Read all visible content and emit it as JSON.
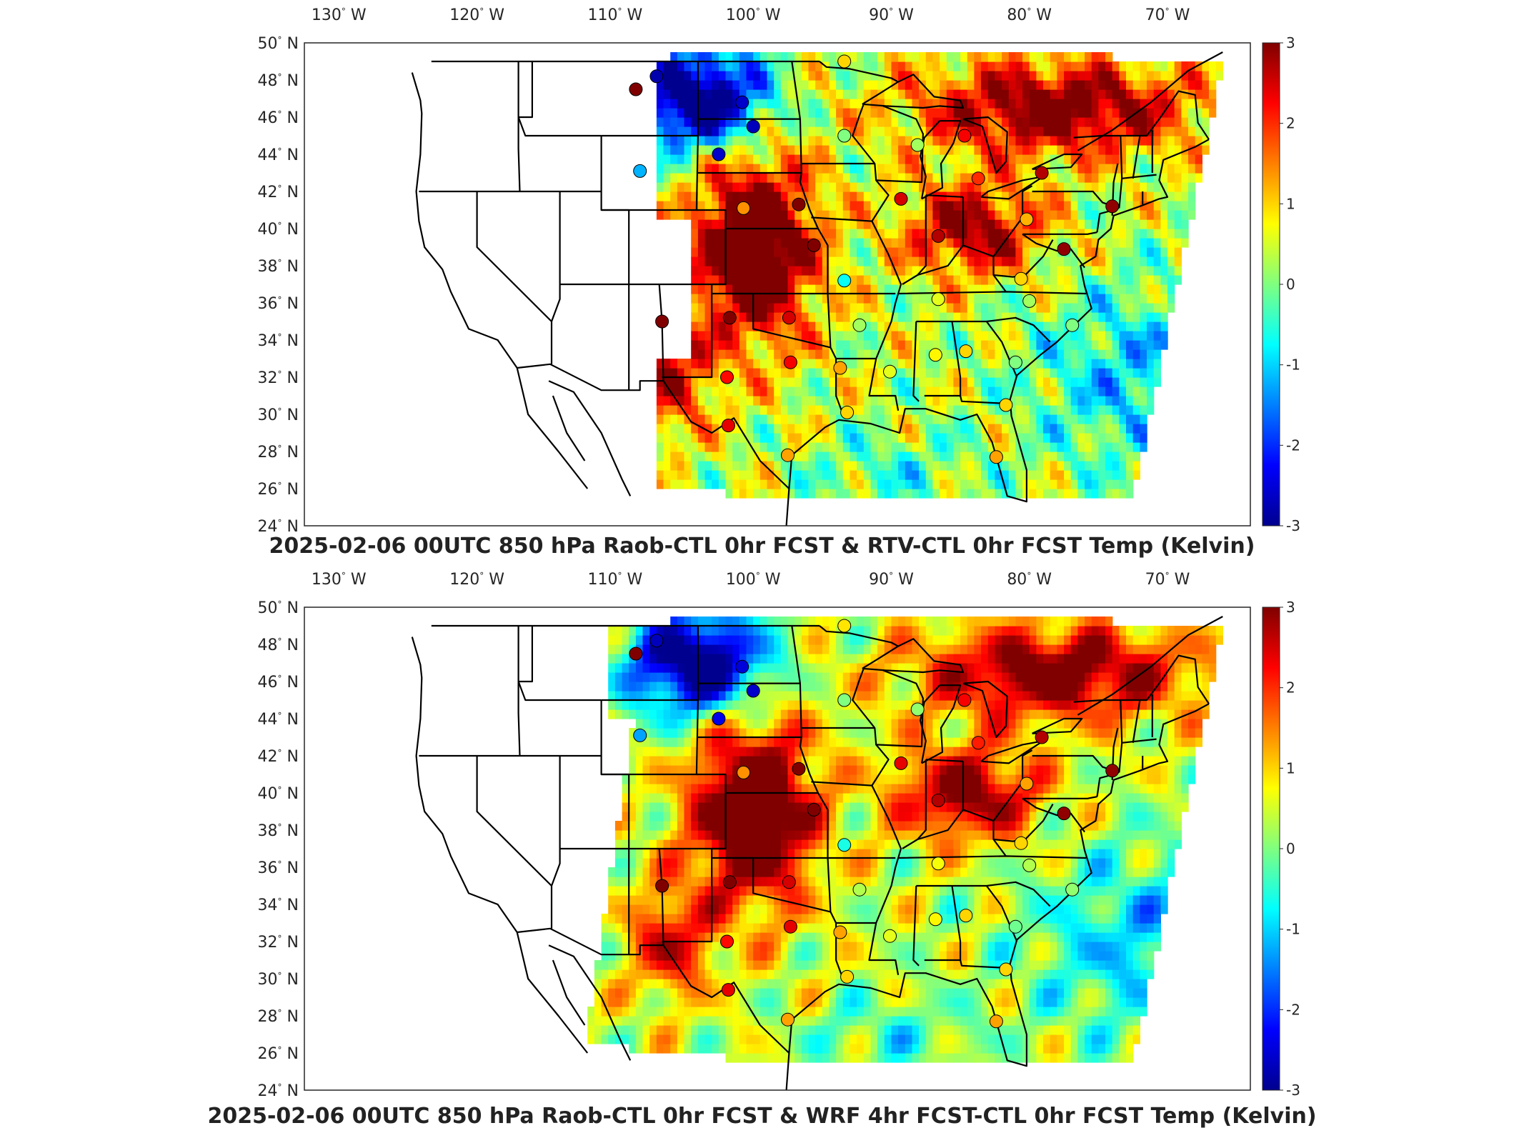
{
  "panels": [
    {
      "id": "top",
      "title": "2025-02-06 00UTC 850 hPa Raob-CTL 0hr FCST & RTV-CTL 0hr FCST Temp (Kelvin)",
      "field": "rtv"
    },
    {
      "id": "bottom",
      "title": "2025-02-06 00UTC 850 hPa Raob-CTL 0hr FCST & WRF 4hr FCST-CTL 0hr FCST Temp (Kelvin)",
      "field": "wrf"
    }
  ],
  "axes": {
    "lon_ticks": [
      "130",
      "120",
      "110",
      "100",
      "90",
      "80",
      "70"
    ],
    "lon_suffix": "W",
    "lat_ticks": [
      "50",
      "48",
      "46",
      "44",
      "42",
      "40",
      "38",
      "36",
      "34",
      "32",
      "30",
      "28",
      "26",
      "24"
    ],
    "lat_suffix": "N"
  },
  "colorbar": {
    "ticks": [
      "3",
      "2",
      "1",
      "0",
      "-1",
      "-2",
      "-3"
    ],
    "range": [
      -3,
      3
    ],
    "colormap": "jet",
    "colors": [
      "#00008f",
      "#0000ff",
      "#00ffff",
      "#ffff00",
      "#ff0000",
      "#800000"
    ]
  },
  "stations": [
    {
      "lon": -108.5,
      "lat": 47.5,
      "top": 3.0,
      "bottom": 3.0
    },
    {
      "lon": -107.0,
      "lat": 48.2,
      "top": -2.8,
      "bottom": -2.7
    },
    {
      "lon": -100.8,
      "lat": 46.8,
      "top": -2.6,
      "bottom": -2.5
    },
    {
      "lon": -100.0,
      "lat": 45.5,
      "top": -2.7,
      "bottom": -2.6
    },
    {
      "lon": -102.5,
      "lat": 44.0,
      "top": -2.6,
      "bottom": -2.4
    },
    {
      "lon": -108.2,
      "lat": 43.1,
      "top": -1.2,
      "bottom": -1.3
    },
    {
      "lon": -93.4,
      "lat": 49.0,
      "top": 1.0,
      "bottom": 0.9
    },
    {
      "lon": -93.4,
      "lat": 45.0,
      "top": 0.0,
      "bottom": 0.0
    },
    {
      "lon": -88.1,
      "lat": 44.5,
      "top": 0.2,
      "bottom": 0.1
    },
    {
      "lon": -84.7,
      "lat": 45.0,
      "top": 2.3,
      "bottom": 2.3
    },
    {
      "lon": -83.7,
      "lat": 42.7,
      "top": 2.0,
      "bottom": 2.1
    },
    {
      "lon": -79.1,
      "lat": 43.0,
      "top": 2.7,
      "bottom": 2.7
    },
    {
      "lon": -89.3,
      "lat": 41.6,
      "top": 2.5,
      "bottom": 2.4
    },
    {
      "lon": -96.7,
      "lat": 41.3,
      "top": 3.0,
      "bottom": 3.0
    },
    {
      "lon": -100.7,
      "lat": 41.1,
      "top": 1.4,
      "bottom": 1.4
    },
    {
      "lon": -95.6,
      "lat": 39.1,
      "top": 3.0,
      "bottom": 3.0
    },
    {
      "lon": -86.6,
      "lat": 39.6,
      "top": 2.7,
      "bottom": 2.7
    },
    {
      "lon": -80.2,
      "lat": 40.5,
      "top": 1.2,
      "bottom": 1.3
    },
    {
      "lon": -77.5,
      "lat": 38.9,
      "top": 2.9,
      "bottom": 2.9
    },
    {
      "lon": -74.0,
      "lat": 41.2,
      "top": 2.9,
      "bottom": 2.9
    },
    {
      "lon": -93.4,
      "lat": 37.2,
      "top": -0.7,
      "bottom": -0.6
    },
    {
      "lon": -86.6,
      "lat": 36.2,
      "top": 0.6,
      "bottom": 0.7
    },
    {
      "lon": -80.6,
      "lat": 37.3,
      "top": 1.0,
      "bottom": 1.0
    },
    {
      "lon": -80.0,
      "lat": 36.1,
      "top": 0.2,
      "bottom": 0.3
    },
    {
      "lon": -76.9,
      "lat": 34.8,
      "top": 0.0,
      "bottom": 0.1
    },
    {
      "lon": -101.7,
      "lat": 35.2,
      "top": 3.0,
      "bottom": 3.0
    },
    {
      "lon": -97.4,
      "lat": 35.2,
      "top": 2.5,
      "bottom": 2.5
    },
    {
      "lon": -106.6,
      "lat": 35.0,
      "top": 3.0,
      "bottom": 3.0
    },
    {
      "lon": -92.3,
      "lat": 34.8,
      "top": 0.2,
      "bottom": 0.3
    },
    {
      "lon": -97.3,
      "lat": 32.8,
      "top": 2.3,
      "bottom": 2.4
    },
    {
      "lon": -101.9,
      "lat": 32.0,
      "top": 2.2,
      "bottom": 2.2
    },
    {
      "lon": -93.7,
      "lat": 32.5,
      "top": 1.3,
      "bottom": 1.3
    },
    {
      "lon": -90.1,
      "lat": 32.3,
      "top": 0.6,
      "bottom": 0.6
    },
    {
      "lon": -86.8,
      "lat": 33.2,
      "top": 0.8,
      "bottom": 0.8
    },
    {
      "lon": -84.6,
      "lat": 33.4,
      "top": 1.0,
      "bottom": 1.0
    },
    {
      "lon": -81.0,
      "lat": 32.8,
      "top": 0.0,
      "bottom": -0.1
    },
    {
      "lon": -101.8,
      "lat": 29.4,
      "top": 2.4,
      "bottom": 2.4
    },
    {
      "lon": -97.5,
      "lat": 27.8,
      "top": 1.3,
      "bottom": 1.3
    },
    {
      "lon": -93.2,
      "lat": 30.1,
      "top": 1.0,
      "bottom": 1.0
    },
    {
      "lon": -81.7,
      "lat": 30.5,
      "top": 1.0,
      "bottom": 1.0
    },
    {
      "lon": -82.4,
      "lat": 27.7,
      "top": 1.3,
      "bottom": 1.3
    }
  ]
}
